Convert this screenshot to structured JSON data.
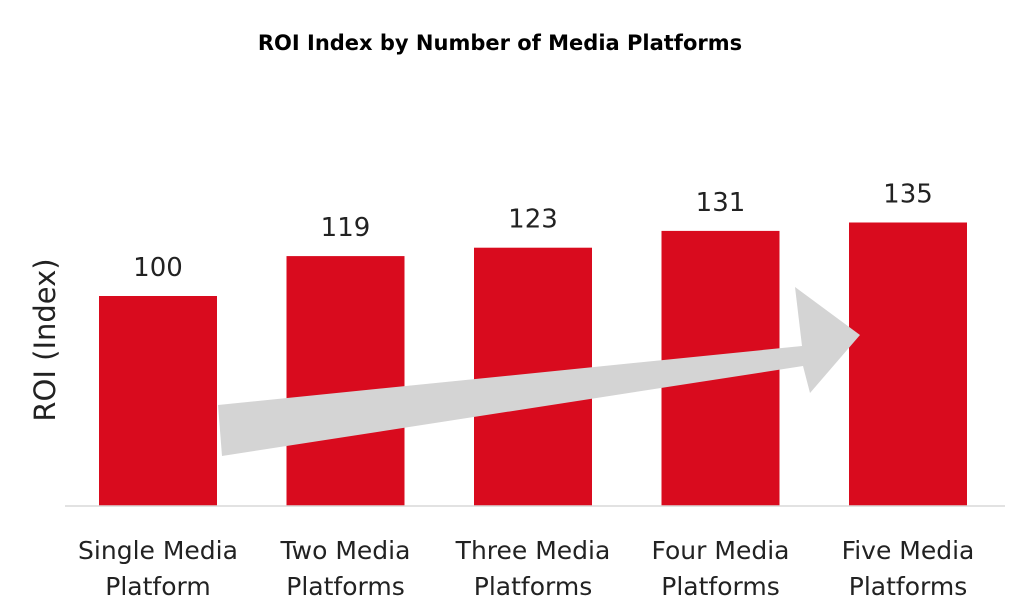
{
  "chart_data": {
    "type": "bar",
    "title": "ROI Index by Number of Media Platforms",
    "xlabel": "",
    "ylabel": "ROI (Index)",
    "categories": [
      [
        "Single Media",
        "Platform"
      ],
      [
        "Two Media",
        "Platforms"
      ],
      [
        "Three Media",
        "Platforms"
      ],
      [
        "Four Media",
        "Platforms"
      ],
      [
        "Five Media",
        "Platforms"
      ]
    ],
    "values": [
      100,
      119,
      123,
      131,
      135
    ],
    "ylim": [
      0,
      140
    ],
    "grid": false,
    "legend": "none",
    "bar_color": "#d90b1e",
    "annotation": {
      "type": "trend-arrow",
      "direction": "up-right",
      "color": "#d4d4d4"
    }
  }
}
